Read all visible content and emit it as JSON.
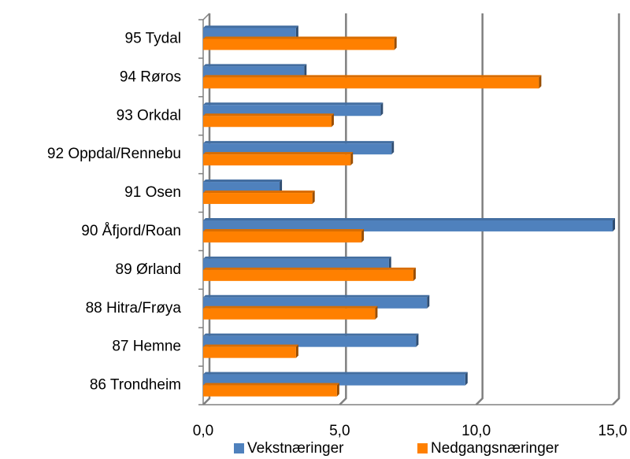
{
  "chart_data": {
    "type": "bar",
    "orientation": "horizontal",
    "categories": [
      "95 Tydal",
      "94 Røros",
      "93 Orkdal",
      "92 Oppdal/Rennebu",
      "91 Osen",
      "90 Åfjord/Roan",
      "89 Ørland",
      "88 Hitra/Frøya",
      "87 Hemne",
      "86 Trondheim"
    ],
    "series": [
      {
        "name": "Vekstnæringer",
        "color": "#4f81bd",
        "values": [
          3.4,
          3.7,
          6.5,
          6.9,
          2.8,
          15.0,
          6.8,
          8.2,
          7.8,
          9.6
        ]
      },
      {
        "name": "Nedgangsnæringer",
        "color": "#ff8000",
        "values": [
          7.0,
          12.3,
          4.7,
          5.4,
          4.0,
          5.8,
          7.7,
          6.3,
          3.4,
          4.9
        ]
      }
    ],
    "xlim": [
      0,
      15
    ],
    "xticks": [
      {
        "value": 0,
        "label": "0,0"
      },
      {
        "value": 5,
        "label": "5,0"
      },
      {
        "value": 10,
        "label": "10,0"
      },
      {
        "value": 15,
        "label": "15,0"
      }
    ],
    "grid": true,
    "legend": "bottom"
  }
}
